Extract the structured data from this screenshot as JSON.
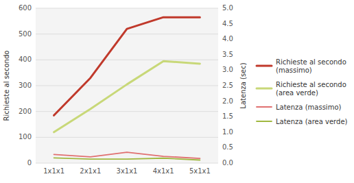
{
  "chart_data": {
    "type": "line",
    "categories": [
      "1x1x1",
      "2x1x1",
      "3x1x1",
      "4x1x1",
      "5x1x1"
    ],
    "ylabel": "Richieste al secondo",
    "y2label": "Latenza (sec)",
    "ylim": [
      0,
      600
    ],
    "yticks": [
      0,
      100,
      200,
      300,
      400,
      500,
      600
    ],
    "y2lim": [
      0,
      5
    ],
    "y2ticks": [
      {
        "value": 0,
        "label": "0.0"
      },
      0.5,
      {
        "value": 1,
        "label": "1.0"
      },
      1.5,
      {
        "value": 2,
        "label": "2.0"
      },
      2.5,
      {
        "value": 3,
        "label": "3.0"
      },
      3.5,
      {
        "value": 4,
        "label": "4.0"
      },
      4.5,
      {
        "value": 5,
        "label": "5.0"
      }
    ],
    "grid": true,
    "legend": "right",
    "series": [
      {
        "name": "Richieste al secondo\n(massimo)",
        "color": "#c0392b",
        "values": [
          185,
          330,
          520,
          565,
          565
        ]
      },
      {
        "name": "Richieste al secondo\n(area verde)",
        "color": "#c8d878",
        "values": [
          120,
          210,
          305,
          395,
          385
        ]
      },
      {
        "name": "Latenza (massimo)",
        "color": "#e07070",
        "axis": "y2",
        "values": [
          0.28,
          0.2,
          0.35,
          0.22,
          0.15
        ]
      },
      {
        "name": "Latenza (area verde)",
        "color": "#a0b840",
        "axis": "y2",
        "values": [
          0.17,
          0.13,
          0.13,
          0.16,
          0.1
        ]
      }
    ]
  }
}
